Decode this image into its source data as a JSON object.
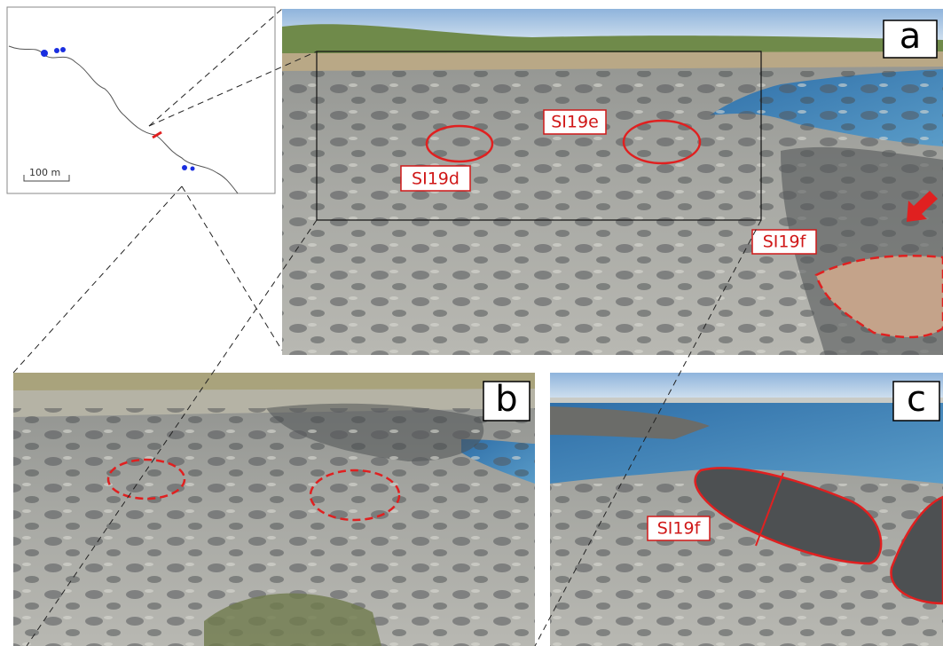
{
  "map": {
    "scale_label": "100 m"
  },
  "panels": [
    {
      "label": "a",
      "annotations": [
        "SI19e",
        "SI19d",
        "SI19f"
      ]
    },
    {
      "label": "b"
    },
    {
      "label": "c",
      "annotations": [
        "SI19f"
      ]
    }
  ]
}
